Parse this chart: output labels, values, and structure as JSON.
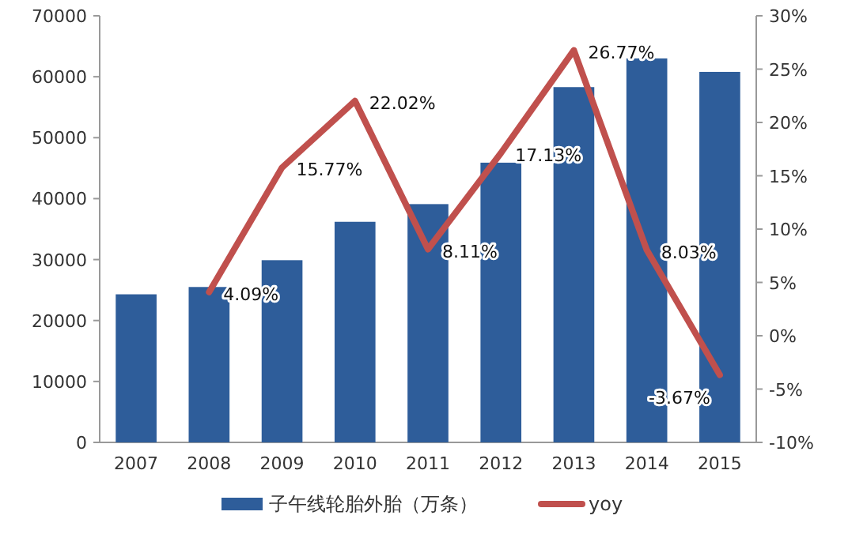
{
  "chart_data": {
    "type": "bar",
    "categories": [
      "2007",
      "2008",
      "2009",
      "2010",
      "2011",
      "2012",
      "2013",
      "2014",
      "2015"
    ],
    "series": [
      {
        "name": "子午线轮胎外胎（万条）",
        "color": "#2e5d9a",
        "values": [
          24300,
          25500,
          29900,
          36200,
          39100,
          45900,
          58300,
          63000,
          60800
        ]
      },
      {
        "name": "yoy",
        "type": "line",
        "axis": "y2",
        "color": "#c0504d",
        "values": [
          null,
          4.09,
          15.77,
          22.02,
          8.11,
          17.13,
          26.77,
          8.03,
          -3.67
        ],
        "value_labels": [
          null,
          "4.09%",
          "15.77%",
          "22.02%",
          "8.11%",
          "17.13%",
          "26.77%",
          "8.03%",
          "-3.67%"
        ]
      }
    ],
    "ylim": [
      0,
      70000
    ],
    "yticks": [
      0,
      10000,
      20000,
      30000,
      40000,
      50000,
      60000,
      70000
    ],
    "y2lim": [
      -10,
      30
    ],
    "y2ticks": [
      {
        "value": -10,
        "label": "-10%"
      },
      {
        "value": -5,
        "label": "-5%"
      },
      {
        "value": 0,
        "label": "0%"
      },
      {
        "value": 5,
        "label": "5%"
      },
      {
        "value": 10,
        "label": "10%"
      },
      {
        "value": 15,
        "label": "15%"
      },
      {
        "value": 20,
        "label": "20%"
      },
      {
        "value": 25,
        "label": "25%"
      },
      {
        "value": 30,
        "label": "30%"
      }
    ],
    "legend": "bottom"
  }
}
